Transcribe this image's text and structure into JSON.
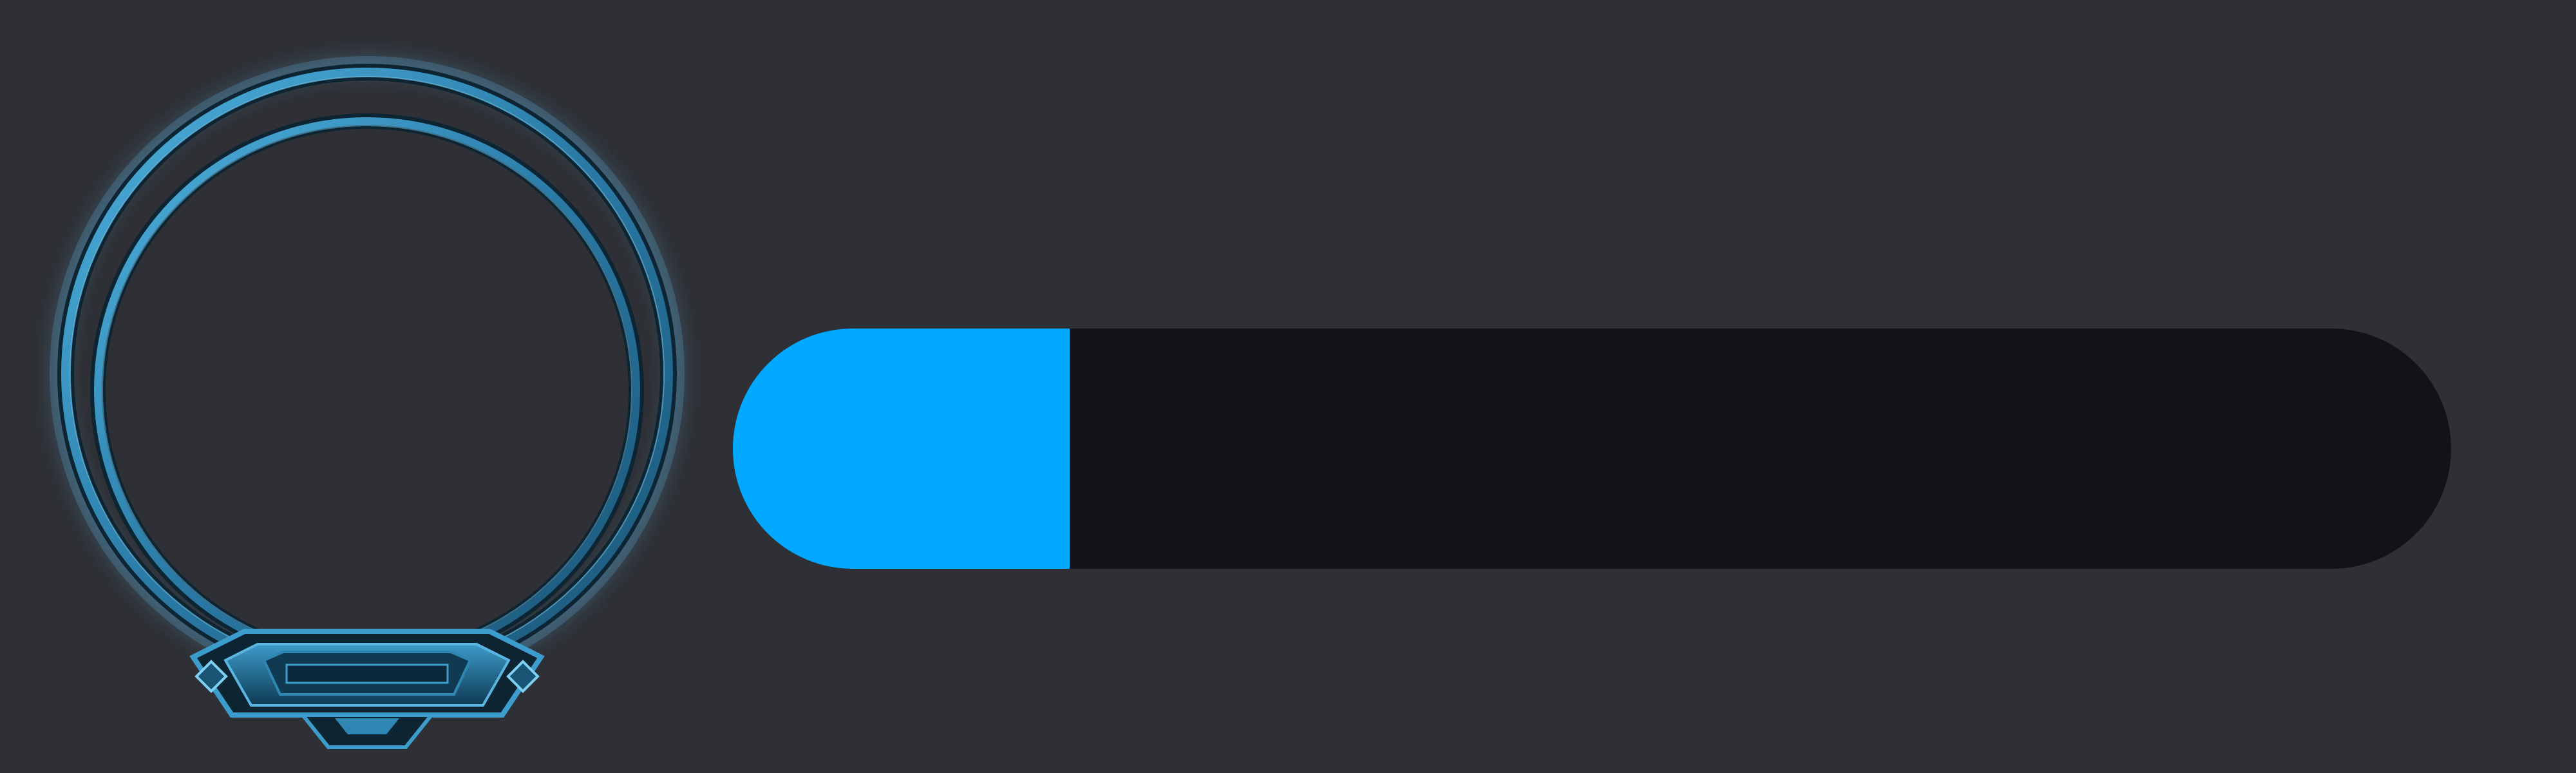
{
  "colors": {
    "background": "#2e3035",
    "frame": "#2f86b3",
    "frame_dark": "#0f3a52",
    "bar_track": "#121317",
    "bar_fill": "#00a9ff"
  },
  "portrait": {
    "icon": "hextech-ring-frame-icon"
  },
  "xp_bar": {
    "progress": 0.196
  }
}
